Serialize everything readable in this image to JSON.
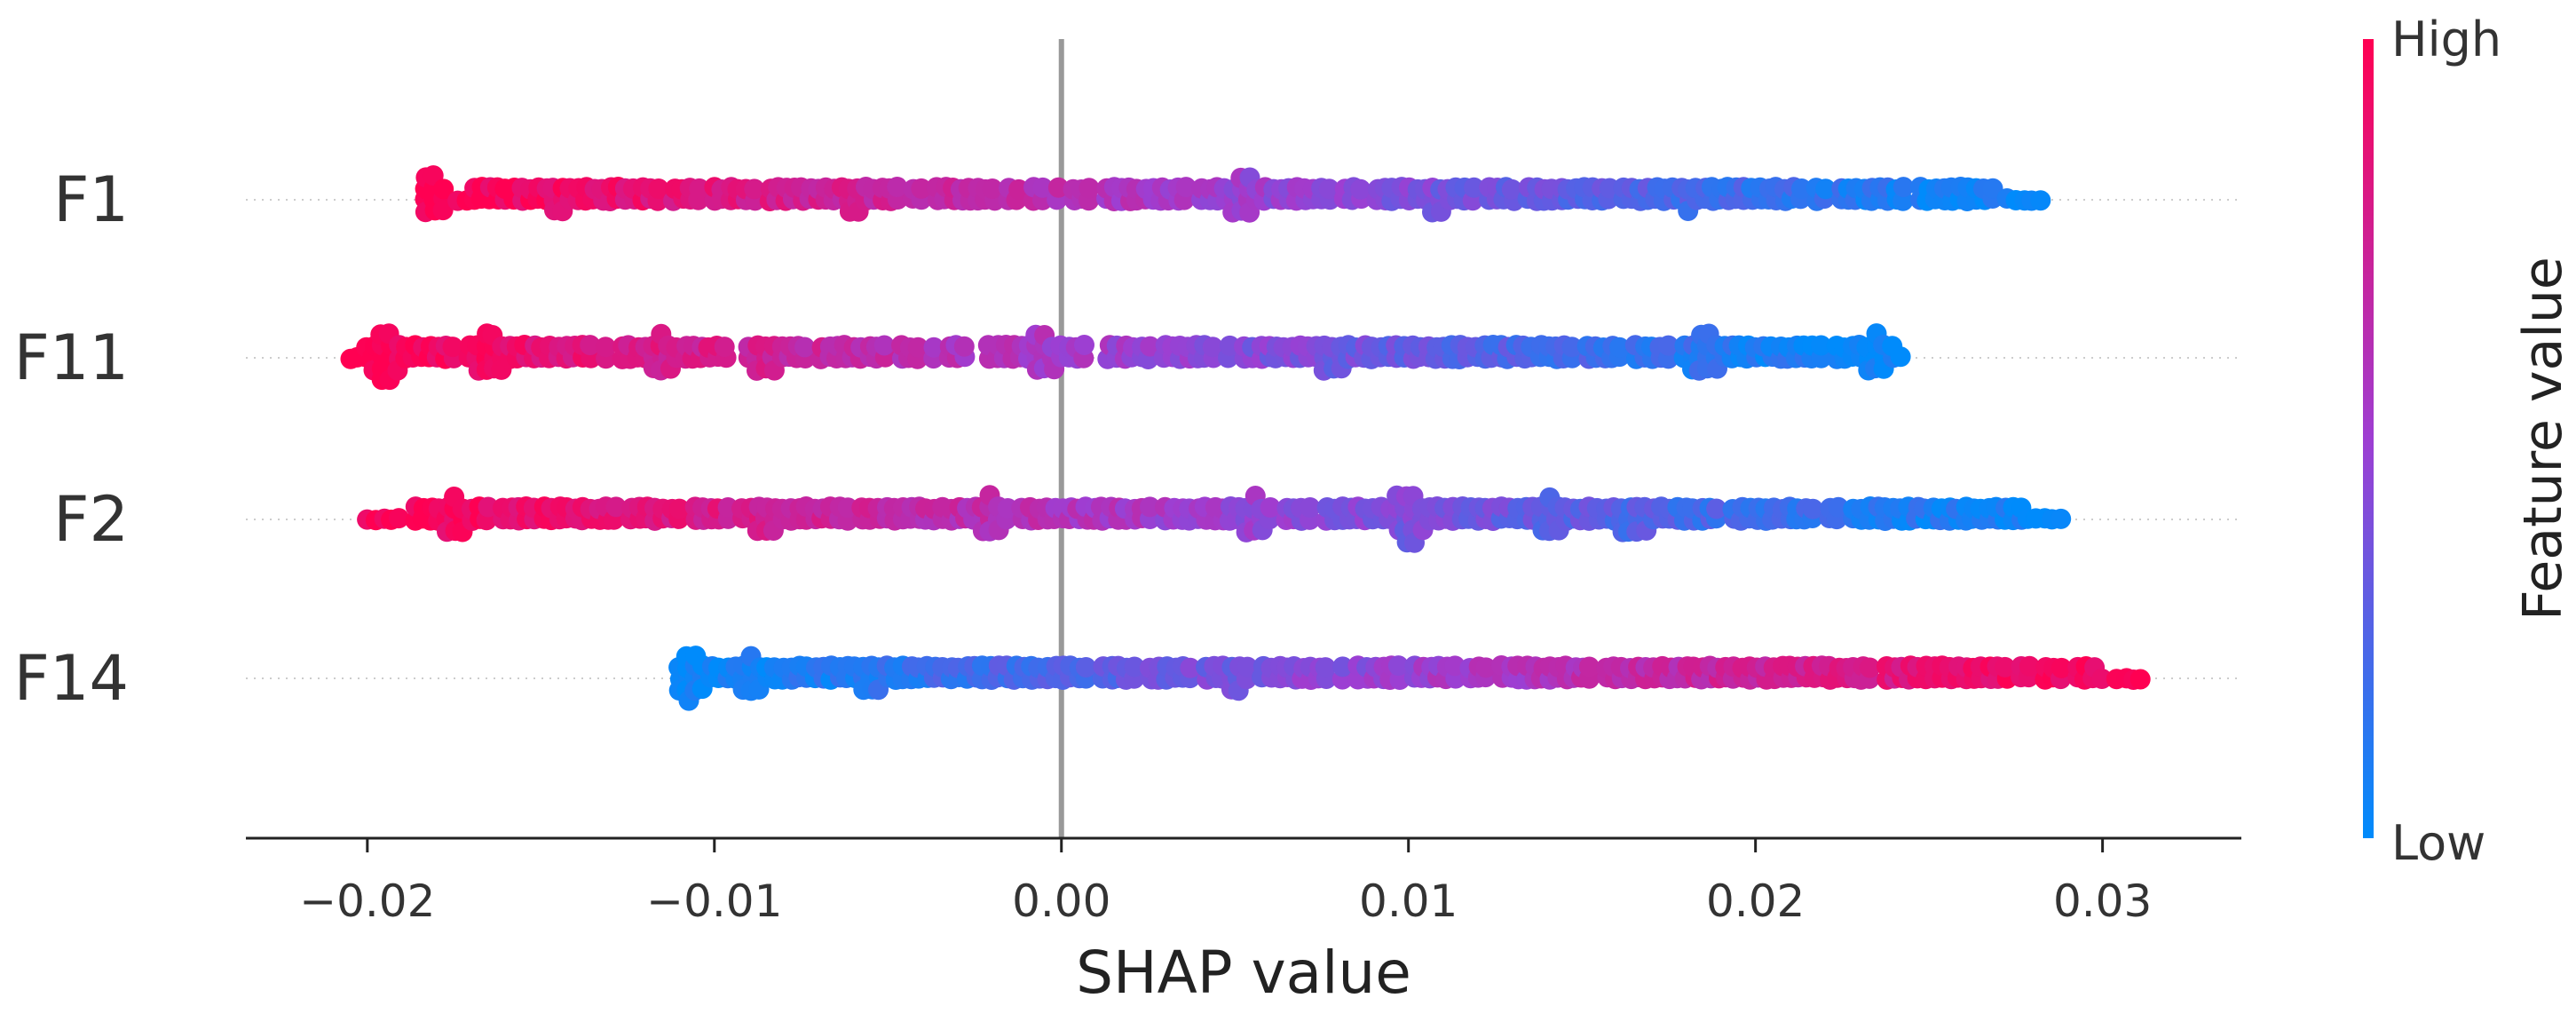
{
  "chart_data": {
    "type": "scatter",
    "subtype": "shap-beeswarm",
    "xlabel": "SHAP value",
    "xlim": [
      -0.0235,
      0.034
    ],
    "xticks": [
      -0.02,
      -0.01,
      0.0,
      0.01,
      0.02,
      0.03
    ],
    "xtick_labels": [
      "−0.02",
      "−0.01",
      "0.00",
      "0.01",
      "0.02",
      "0.03"
    ],
    "zero_line": 0.0,
    "colorbar": {
      "label": "Feature value",
      "high_label": "High",
      "low_label": "Low",
      "high_color": "#ff0052",
      "low_color": "#008bfb"
    },
    "features": [
      {
        "name": "F1",
        "min": -0.0183,
        "max": 0.0285,
        "direction": "high-to-low",
        "seed": 11,
        "clusters": [
          [
            -0.0182,
            3.6
          ],
          [
            -0.0145,
            1.5
          ],
          [
            -0.006,
            1.5
          ],
          [
            0.0052,
            2.6
          ],
          [
            0.0108,
            1.2
          ],
          [
            0.018,
            1.0
          ]
        ]
      },
      {
        "name": "F11",
        "min": -0.0205,
        "max": 0.0243,
        "direction": "high-to-low",
        "seed": 29,
        "clusters": [
          [
            -0.0195,
            3.6
          ],
          [
            -0.0165,
            2.4
          ],
          [
            -0.0115,
            2.2
          ],
          [
            -0.0085,
            1.8
          ],
          [
            -0.0005,
            2.6
          ],
          [
            0.0078,
            1.5
          ],
          [
            0.0185,
            2.4
          ],
          [
            0.0235,
            2.2
          ]
        ]
      },
      {
        "name": "F2",
        "min": -0.02,
        "max": 0.029,
        "direction": "high-to-low",
        "seed": 47,
        "clusters": [
          [
            -0.0175,
            2.2
          ],
          [
            -0.0085,
            1.6
          ],
          [
            -0.002,
            2.0
          ],
          [
            0.0055,
            2.0
          ],
          [
            0.01,
            3.5
          ],
          [
            0.014,
            2.0
          ],
          [
            0.0165,
            2.0
          ]
        ]
      },
      {
        "name": "F14",
        "min": -0.011,
        "max": 0.0312,
        "direction": "low-to-high",
        "seed": 83,
        "clusters": [
          [
            -0.0107,
            3.8
          ],
          [
            -0.009,
            2.2
          ],
          [
            -0.0055,
            1.4
          ],
          [
            0.005,
            1.3
          ]
        ]
      }
    ]
  }
}
